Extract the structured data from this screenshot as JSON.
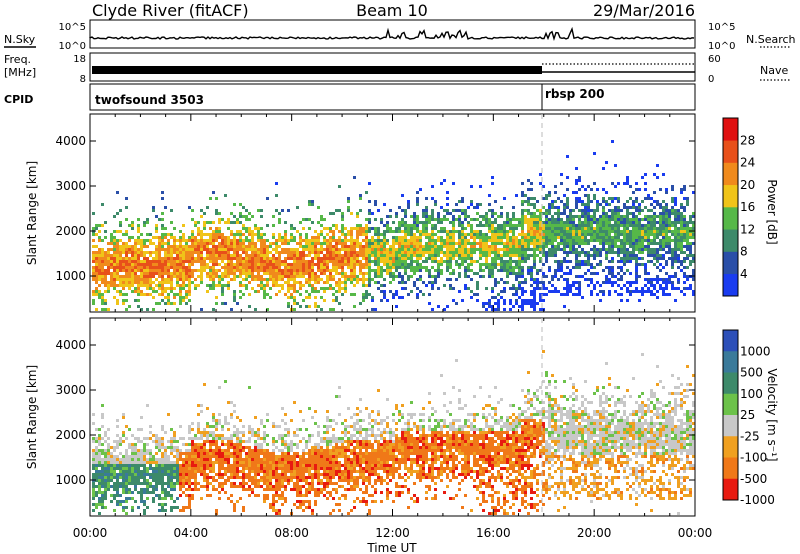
{
  "header": {
    "station": "Clyde River (fitACF)",
    "beam": "Beam 10",
    "date": "29/Mar/2016"
  },
  "noise_panel": {
    "left_label": "N.Sky",
    "right_label": "N.Search",
    "ytick_top": "10^5",
    "ytick_bottom": "10^0",
    "rtick_top": "10^5",
    "rtick_bottom": "10^0"
  },
  "freq_panel": {
    "left_label_1": "Freq.",
    "left_label_2": "[MHz]",
    "right_label": "Nave",
    "ytick_top": "18",
    "ytick_bottom": "8",
    "rtick_top": "60",
    "rtick_bottom": "0"
  },
  "cpid_panel": {
    "label": "CPID",
    "program_1": "twofsound 3503",
    "program_2": "rbsp 200",
    "program_switch_hour": 18.0
  },
  "x_axis": {
    "label": "Time UT",
    "ticks": [
      "00:00",
      "04:00",
      "08:00",
      "12:00",
      "16:00",
      "20:00",
      "00:00"
    ],
    "range_hours": [
      0,
      24
    ]
  },
  "chart_data": [
    {
      "type": "heatmap",
      "quantity": "Power",
      "ylabel": "Slant Range [km]",
      "yticks": [
        "1000",
        "2000",
        "3000",
        "4000"
      ],
      "ylim": [
        200,
        4600
      ],
      "colorbar_label": "Power [dB]",
      "colorbar_ticks": [
        "4",
        "8",
        "12",
        "16",
        "20",
        "24",
        "28"
      ],
      "colorbar_range": [
        0,
        32
      ],
      "colors": [
        "#1a3cf0",
        "#2a4fa8",
        "#3d8a6a",
        "#56b848",
        "#f0c419",
        "#f08a1c",
        "#e8501a",
        "#e01010"
      ]
    },
    {
      "type": "heatmap",
      "quantity": "Velocity",
      "ylabel": "Slant Range [km]",
      "yticks": [
        "1000",
        "2000",
        "3000",
        "4000"
      ],
      "ylim": [
        200,
        4600
      ],
      "colorbar_label": "Velocity [m s⁻¹]",
      "colorbar_ticks": [
        "1000",
        "500",
        "100",
        "25",
        "-25",
        "-100",
        "-500",
        "-1000"
      ],
      "colors": [
        "#2c4fb8",
        "#3a7a9a",
        "#3d8a6a",
        "#6cc24a",
        "#c8c8c8",
        "#f0a020",
        "#f07818",
        "#e81a10"
      ]
    }
  ]
}
